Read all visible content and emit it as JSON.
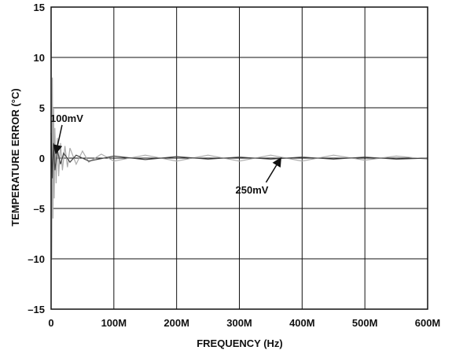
{
  "chart_data": {
    "type": "line",
    "title": "",
    "xlabel": "FREQUENCY (Hz)",
    "ylabel": "TEMPERATURE ERROR (°C)",
    "xlim": [
      0,
      600000000
    ],
    "ylim": [
      -15,
      15
    ],
    "grid": true,
    "x_ticks": [
      0,
      100000000,
      200000000,
      300000000,
      400000000,
      500000000,
      600000000
    ],
    "x_tick_labels": [
      "0",
      "100M",
      "200M",
      "300M",
      "400M",
      "500M",
      "600M"
    ],
    "y_ticks": [
      15,
      10,
      5,
      0,
      -5,
      -10,
      -15
    ],
    "y_tick_labels": [
      "15",
      "10",
      "5",
      "0",
      "–5",
      "–10",
      "–15"
    ],
    "series": [
      {
        "name": "100mV",
        "color": "#aaaaaa",
        "x": [
          0,
          1000000,
          2000000,
          3000000,
          4000000,
          5000000,
          6000000,
          8000000,
          10000000,
          12000000,
          15000000,
          18000000,
          22000000,
          26000000,
          30000000,
          40000000,
          50000000,
          60000000,
          80000000,
          100000000,
          150000000,
          200000000,
          250000000,
          300000000,
          350000000,
          400000000,
          450000000,
          500000000,
          550000000,
          600000000
        ],
        "values": [
          11.5,
          -10,
          8,
          -6,
          5,
          -4,
          3,
          -2.5,
          2,
          -1.8,
          1.5,
          -1.2,
          1.2,
          -0.9,
          1.0,
          -0.6,
          0.7,
          -0.4,
          0.4,
          -0.3,
          0.3,
          -0.3,
          0.3,
          -0.3,
          0.3,
          -0.3,
          0.3,
          -0.2,
          0.2,
          -0.1
        ]
      },
      {
        "name": "250mV",
        "color": "#444444",
        "x": [
          0,
          2000000,
          4000000,
          6000000,
          10000000,
          15000000,
          20000000,
          30000000,
          40000000,
          60000000,
          100000000,
          150000000,
          200000000,
          250000000,
          300000000,
          350000000,
          400000000,
          450000000,
          500000000,
          550000000,
          600000000
        ],
        "values": [
          2.5,
          -2,
          1.5,
          -1.2,
          0.8,
          -0.6,
          0.5,
          -0.4,
          0.3,
          -0.3,
          0.2,
          -0.15,
          0.15,
          -0.1,
          0.1,
          -0.1,
          0.1,
          -0.1,
          0.1,
          -0.1,
          0.0
        ]
      }
    ],
    "annotations": [
      {
        "text": "100mV",
        "x": 25000000,
        "y": 3.6,
        "arrow_to": {
          "x": 8000000,
          "y": 0.6
        }
      },
      {
        "text": "250mV",
        "x": 320000000,
        "y": -3.5,
        "arrow_to": {
          "x": 365000000,
          "y": -0.1
        }
      }
    ]
  }
}
